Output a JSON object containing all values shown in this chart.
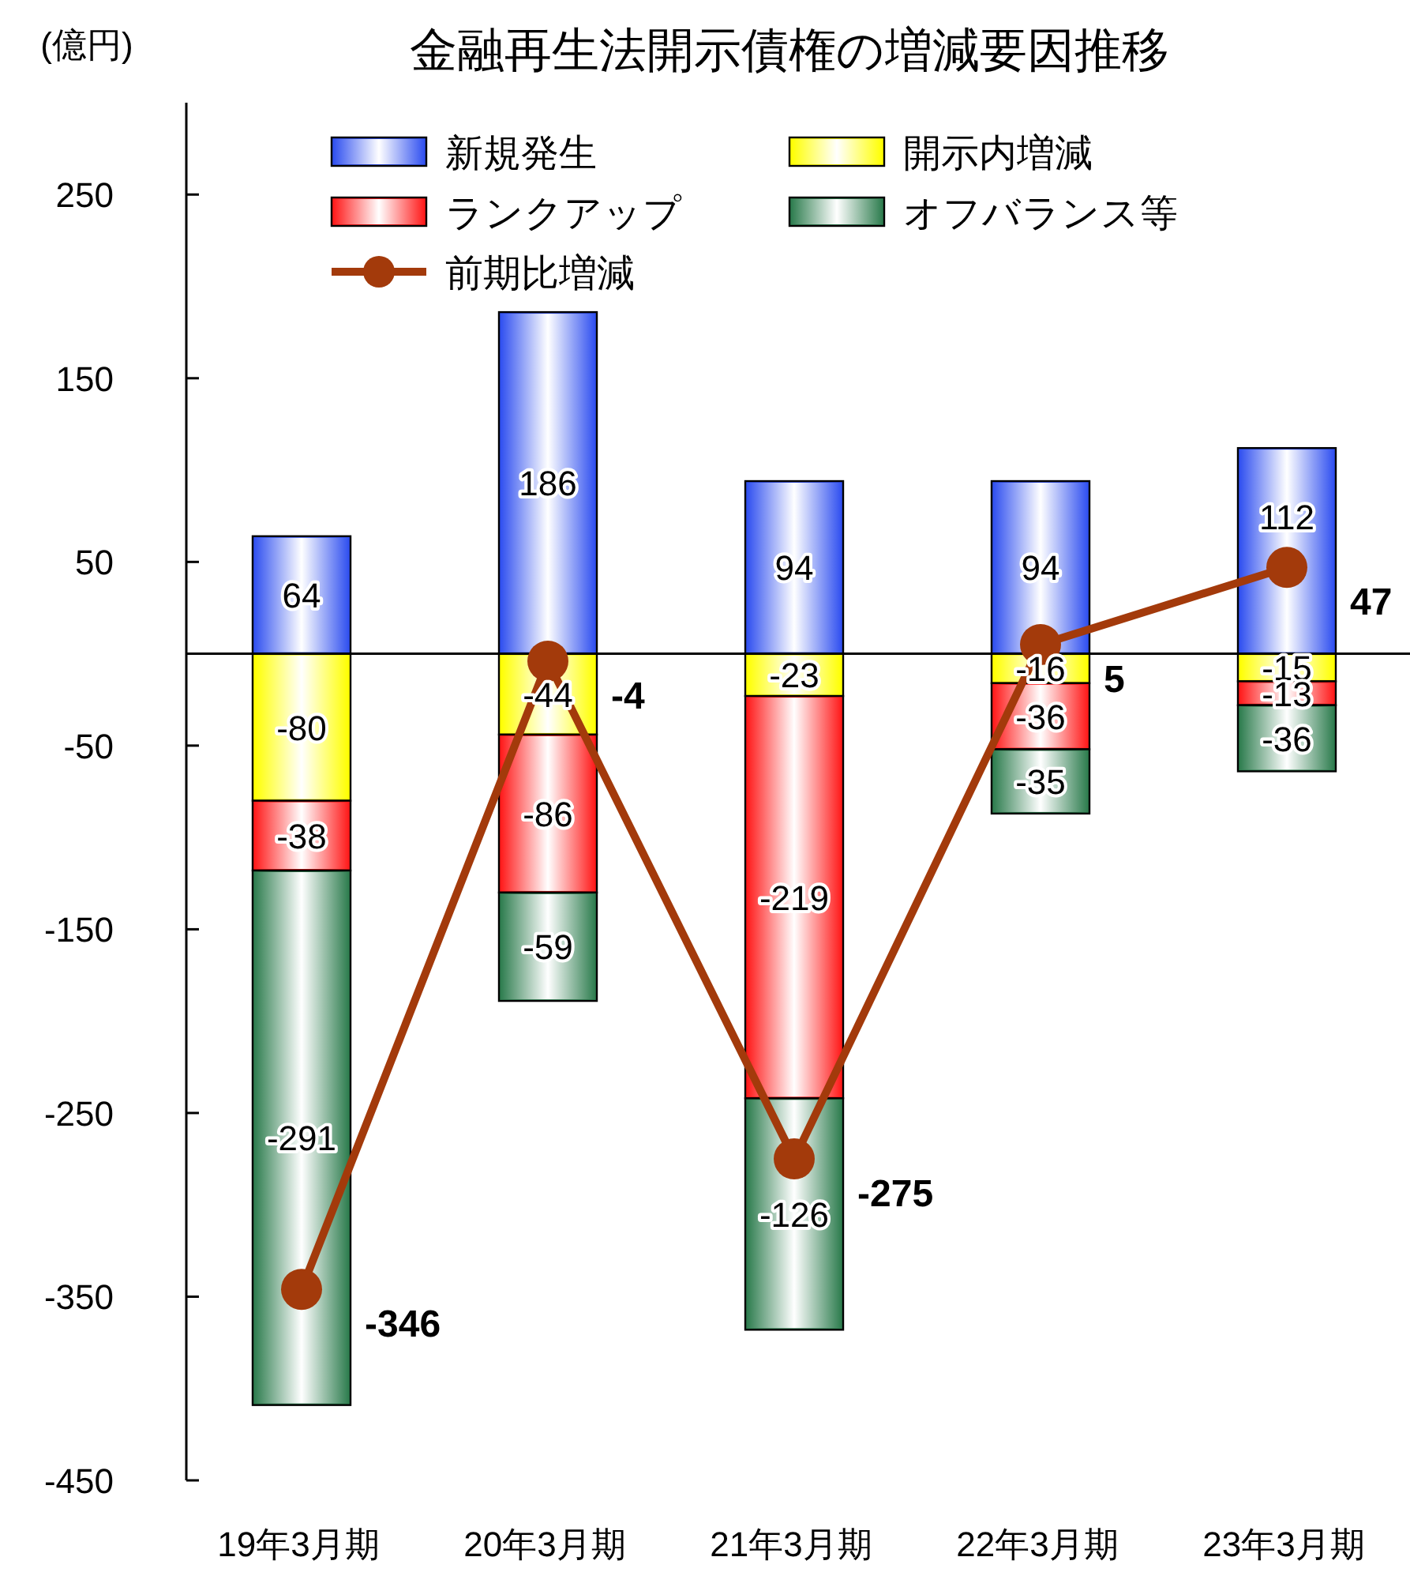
{
  "chart_data": {
    "type": "bar",
    "stacked": true,
    "title": "金融再生法開示債権の増減要因推移",
    "ylabel": "(億円)",
    "categories": [
      "19年3月期",
      "20年3月期",
      "21年3月期",
      "22年3月期",
      "23年3月期"
    ],
    "ylim": [
      -450,
      300
    ],
    "yticks": [
      -450,
      -350,
      -250,
      -150,
      -50,
      50,
      150,
      250
    ],
    "grid": false,
    "legend": "top",
    "data_labels": true,
    "series": [
      {
        "name": "新規発生",
        "color": "#3050f0",
        "values": [
          64,
          186,
          94,
          94,
          112
        ]
      },
      {
        "name": "開示内増減",
        "color": "#ffff00",
        "values": [
          -80,
          -44,
          -23,
          -16,
          -15
        ]
      },
      {
        "name": "ランクアップ",
        "color": "#ff1a1a",
        "values": [
          -38,
          -86,
          -219,
          -36,
          -13
        ]
      },
      {
        "name": "オフバランス等",
        "color": "#2e7d4f",
        "values": [
          -291,
          -59,
          -126,
          -35,
          -36
        ]
      },
      {
        "name": "前期比増減",
        "type": "line",
        "color": "#a33a0b",
        "marker": "circle",
        "line_style": "solid",
        "values": [
          -346,
          -4,
          -275,
          5,
          47
        ]
      }
    ]
  }
}
